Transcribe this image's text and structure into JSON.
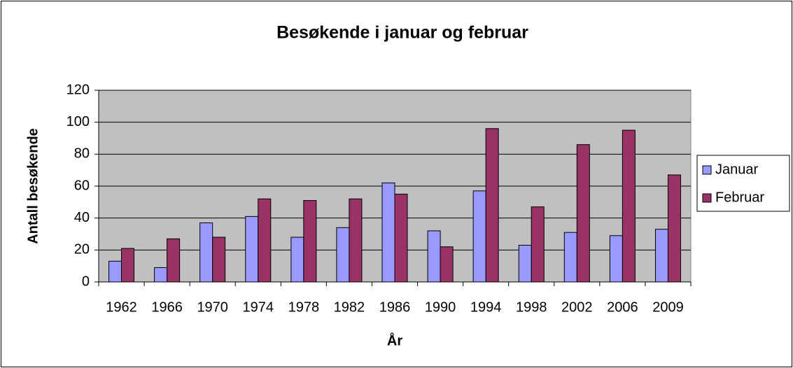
{
  "chart_data": {
    "type": "bar",
    "title": "Besøkende i januar og februar",
    "x_label": "År",
    "y_label": "Antall besøkende",
    "categories": [
      "1962",
      "1966",
      "1970",
      "1974",
      "1978",
      "1982",
      "1986",
      "1990",
      "1994",
      "1998",
      "2002",
      "2006",
      "2009"
    ],
    "series": [
      {
        "name": "Januar",
        "color": "#9999ff",
        "values": [
          13,
          9,
          37,
          41,
          28,
          34,
          62,
          32,
          57,
          23,
          31,
          29,
          33
        ]
      },
      {
        "name": "Februar",
        "color": "#993366",
        "values": [
          21,
          27,
          28,
          52,
          51,
          52,
          55,
          22,
          96,
          47,
          86,
          95,
          67
        ]
      }
    ],
    "ylim": [
      0,
      120
    ],
    "yticks": [
      0,
      20,
      40,
      60,
      80,
      100,
      120
    ],
    "grid": true,
    "legend": "right"
  }
}
